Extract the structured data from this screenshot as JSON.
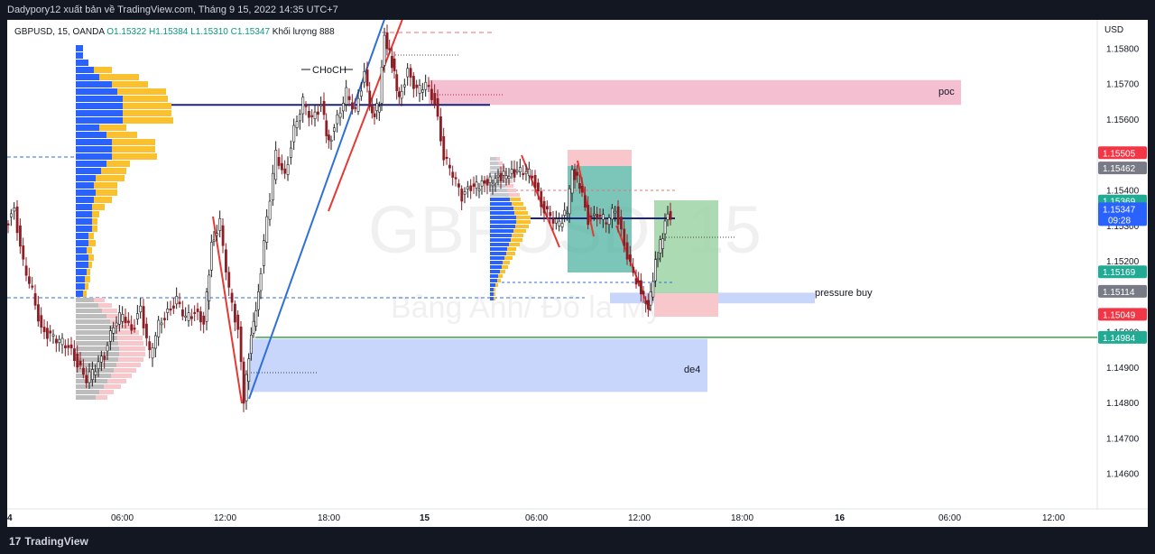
{
  "header": {
    "attribution": "Dadypory12 xuất bản về TradingView.com, Tháng 9 15, 2022 14:35 UTC+7"
  },
  "legend": {
    "symbol_line": "GBPUSD, 15, OANDA",
    "open": "O1.15322",
    "high": "H1.15384",
    "low": "L1.15310",
    "close": "C1.15347",
    "volume_label": "Khối lượng",
    "volume_value": "888"
  },
  "watermark": {
    "symbol": "GBPUSD, 15",
    "description": "Bảng Anh/ Đô la Mỹ"
  },
  "footer": {
    "brand": "TradingView",
    "logo_icon": "tradingview-logo-icon"
  },
  "colors": {
    "up": "#26a69a",
    "down": "#ef5350",
    "poc_zone": "#f4bcd0",
    "demand_zone": "#c6d4fb",
    "volume_blue": "#2962ff",
    "volume_yellow": "#fbc02d",
    "trend_blue": "#2f6fd8",
    "trend_red": "#e53935",
    "long_green": "#9ed3a4",
    "stop_red": "#f8c7cc",
    "range_teal": "#4fb3a0",
    "navy_line": "#1a237e",
    "green_line": "#43a047"
  },
  "chart_data": {
    "type": "candlestick",
    "symbol": "GBPUSD",
    "timeframe": "15",
    "exchange": "OANDA",
    "ylabel": "USD",
    "ylim": [
      1.145,
      1.1588
    ],
    "y_ticks": [
      "1.15800",
      "1.15700",
      "1.15600",
      "1.15500",
      "1.15400",
      "1.15300",
      "1.15200",
      "1.15000",
      "1.14900",
      "1.14800",
      "1.14700",
      "1.14600"
    ],
    "x_ticks": [
      "4",
      "06:00",
      "12:00",
      "18:00",
      "15",
      "06:00",
      "12:00",
      "18:00",
      "16",
      "06:00",
      "12:00"
    ],
    "price_labels": [
      {
        "value": "1.15505",
        "price": 1.15505,
        "color": "#f23645"
      },
      {
        "value": "1.15462",
        "price": 1.15462,
        "color": "#787b86"
      },
      {
        "value": "1.15369",
        "price": 1.15369,
        "color": "#22ab94"
      },
      {
        "value": "1.15347",
        "price": 1.15347,
        "color": "#2962ff",
        "extra": "09:28"
      },
      {
        "value": "1.15169",
        "price": 1.15169,
        "color": "#22ab94"
      },
      {
        "value": "1.15114",
        "price": 1.15114,
        "color": "#787b86"
      },
      {
        "value": "1.15049",
        "price": 1.15049,
        "color": "#f23645"
      },
      {
        "value": "1.14984",
        "price": 1.14984,
        "color": "#22ab94"
      }
    ],
    "ohlc": {
      "open": 1.15322,
      "high": 1.15384,
      "low": 1.1531,
      "close": 1.15347
    },
    "last_volume": 888,
    "annotations": [
      {
        "text": "CHoCH",
        "price": 1.1577
      },
      {
        "text": "poc",
        "price": 1.1568
      },
      {
        "text": "pressure buy",
        "price": 1.1511
      },
      {
        "text": "de4",
        "price": 1.1491
      }
    ],
    "zones": [
      {
        "name": "poc",
        "top": 1.1571,
        "bottom": 1.1564
      },
      {
        "name": "pressure buy",
        "top": 1.1511,
        "bottom": 1.1508
      },
      {
        "name": "de4",
        "top": 1.1498,
        "bottom": 1.1483
      }
    ],
    "key_levels": {
      "poc_line": 1.1564,
      "green_line": 1.14984
    }
  }
}
